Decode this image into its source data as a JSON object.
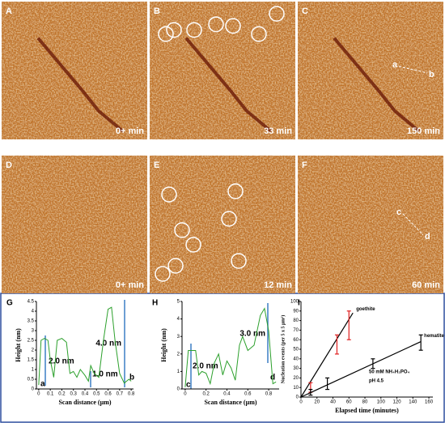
{
  "panels": [
    {
      "letter": "A",
      "time": "0+ min"
    },
    {
      "letter": "B",
      "time": "33 min"
    },
    {
      "letter": "C",
      "time": "150 min",
      "markers": [
        "a",
        "b"
      ]
    },
    {
      "letter": "D",
      "time": "0+ min"
    },
    {
      "letter": "E",
      "time": "12 min"
    },
    {
      "letter": "F",
      "time": "60 min",
      "markers": [
        "c",
        "d"
      ]
    }
  ],
  "chart_data": [
    {
      "type": "line",
      "panel": "G",
      "xlabel": "Scan distance (µm)",
      "ylabel": "Height (nm)",
      "x": [
        0,
        0.02,
        0.05,
        0.08,
        0.1,
        0.13,
        0.16,
        0.2,
        0.24,
        0.27,
        0.3,
        0.33,
        0.36,
        0.4,
        0.43,
        0.45,
        0.48,
        0.52,
        0.56,
        0.6,
        0.63,
        0.66,
        0.7,
        0.74,
        0.78,
        0.8
      ],
      "series": [
        {
          "color": "#2ca02c",
          "values": [
            0.2,
            2.5,
            2.6,
            2.5,
            1.5,
            0.6,
            2.5,
            2.6,
            2.4,
            0.8,
            0.9,
            0.6,
            1.0,
            0.7,
            0.4,
            1.2,
            0.8,
            0.6,
            2.5,
            4.1,
            4.2,
            2.5,
            0.8,
            0.3,
            0.5,
            0.4
          ]
        }
      ],
      "xlim": [
        -0.02,
        0.82
      ],
      "ylim": [
        0,
        4.5
      ],
      "xticks": [
        0,
        0.1,
        0.2,
        0.3,
        0.4,
        0.5,
        0.6,
        0.7,
        0.8
      ],
      "yticks": [
        0,
        0.5,
        1,
        1.5,
        2,
        2.5,
        3,
        3.5,
        4,
        4.5
      ],
      "annotations": [
        "2.0 nm",
        "1.0 nm",
        "4.0 nm",
        "a",
        "b"
      ]
    },
    {
      "type": "line",
      "panel": "H",
      "xlabel": "Scan distance (µm)",
      "ylabel": "Height (nm)",
      "x": [
        0,
        0.03,
        0.1,
        0.13,
        0.16,
        0.2,
        0.24,
        0.28,
        0.32,
        0.36,
        0.4,
        0.44,
        0.48,
        0.52,
        0.55,
        0.6,
        0.66,
        0.72,
        0.76,
        0.8,
        0.84,
        0.87
      ],
      "series": [
        {
          "color": "#2ca02c",
          "values": [
            0.1,
            2.2,
            2.2,
            0.8,
            1.0,
            0.9,
            0.3,
            1.5,
            2.0,
            0.8,
            1.6,
            1.2,
            0.5,
            2.5,
            3.0,
            2.2,
            2.5,
            4.2,
            4.6,
            3.3,
            0.3,
            0.4
          ]
        }
      ],
      "xlim": [
        -0.03,
        0.9
      ],
      "ylim": [
        0,
        5
      ],
      "xticks": [
        0,
        0.2,
        0.4,
        0.6,
        0.8
      ],
      "yticks": [
        0,
        1,
        2,
        3,
        4,
        5
      ],
      "annotations": [
        "2.0 nm",
        "3.0 nm",
        "c",
        "d"
      ]
    },
    {
      "type": "scatter",
      "panel": "I",
      "xlabel": "Elapsed time (minutes)",
      "ylabel": "Nucleation events (per 5 x 5 µm²)",
      "series": [
        {
          "name": "goethite",
          "color": "#e02020",
          "x": [
            12,
            45,
            60
          ],
          "values": [
            10,
            55,
            75
          ],
          "errors": [
            5,
            10,
            15
          ],
          "fit": {
            "x": [
              0,
              65
            ],
            "values": [
              0,
              88
            ]
          }
        },
        {
          "name": "hematite",
          "color": "#000000",
          "x": [
            12,
            33,
            90,
            150
          ],
          "values": [
            5,
            14,
            35,
            57
          ],
          "errors": [
            3,
            6,
            5,
            8
          ],
          "fit": {
            "x": [
              0,
              150
            ],
            "values": [
              0,
              58
            ]
          }
        }
      ],
      "xlim": [
        0,
        165
      ],
      "ylim": [
        0,
        100
      ],
      "xticks": [
        0,
        20,
        40,
        60,
        80,
        100,
        120,
        140,
        160
      ],
      "yticks": [
        0,
        10,
        20,
        30,
        40,
        50,
        60,
        70,
        80,
        90,
        100
      ],
      "annotations": [
        "50 mM NH₄H₂PO₄",
        "pH 4.5"
      ]
    }
  ]
}
